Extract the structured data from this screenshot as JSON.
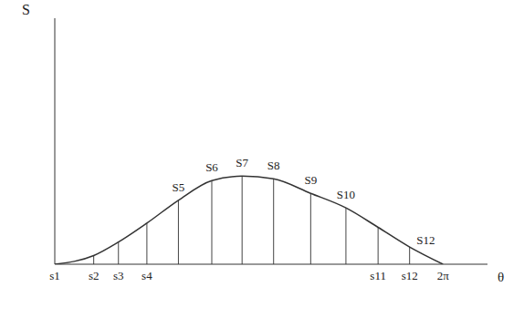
{
  "chart_data": {
    "type": "line",
    "x_label": "θ",
    "y_label": "S",
    "x": [
      0,
      0.63,
      1.03,
      1.49,
      2.0,
      2.54,
      3.03,
      3.54,
      4.14,
      4.71,
      5.23,
      5.74,
      6.28
    ],
    "series": [
      {
        "name": "S",
        "color": "#333333",
        "values": [
          0,
          3.5,
          9,
          16.7,
          26,
          34,
          35.8,
          34.7,
          28.8,
          22.9,
          15,
          7,
          0
        ]
      }
    ],
    "xlim": [
      0,
      7.0
    ],
    "ylim": [
      0,
      100
    ],
    "xticks": [
      {
        "value": 0,
        "label": "s1"
      },
      {
        "value": 0.63,
        "label": "s2"
      },
      {
        "value": 1.03,
        "label": "s3"
      },
      {
        "value": 1.49,
        "label": "s4"
      },
      {
        "value": 5.23,
        "label": "s11"
      },
      {
        "value": 5.74,
        "label": "s12"
      },
      {
        "value": 6.28,
        "label": "2π"
      }
    ],
    "yticks": [],
    "tick_labels": "x",
    "grid": false,
    "line_style": "solid",
    "marker": "none",
    "annotations": [
      {
        "text": "S5",
        "x": 2.0,
        "y": 26
      },
      {
        "text": "S6",
        "x": 2.54,
        "y": 34
      },
      {
        "text": "S7",
        "x": 3.03,
        "y": 35.8
      },
      {
        "text": "S8",
        "x": 3.54,
        "y": 34.7
      },
      {
        "text": "S9",
        "x": 4.14,
        "y": 28.8
      },
      {
        "text": "S10",
        "x": 4.71,
        "y": 22.9
      },
      {
        "text": "S12",
        "x": 6.0,
        "y": 4.5
      }
    ]
  }
}
